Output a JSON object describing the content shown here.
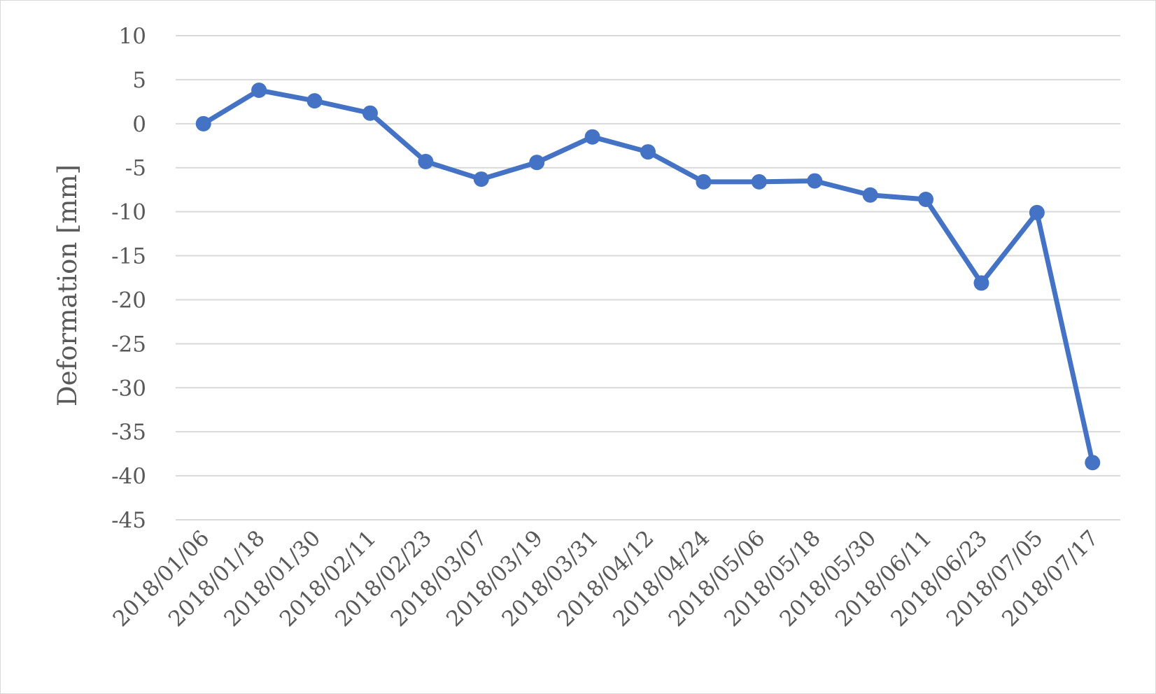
{
  "chart_data": {
    "type": "line",
    "title": "",
    "xlabel": "",
    "ylabel": "Deformation [mm]",
    "ylim": [
      -45,
      10
    ],
    "ytick_step": 5,
    "grid": true,
    "legend": "none",
    "series_color": "#4472C4",
    "categories": [
      "2018/01/06",
      "2018/01/18",
      "2018/01/30",
      "2018/02/11",
      "2018/02/23",
      "2018/03/07",
      "2018/03/19",
      "2018/03/31",
      "2018/04/12",
      "2018/04/24",
      "2018/05/06",
      "2018/05/18",
      "2018/05/30",
      "2018/06/11",
      "2018/06/23",
      "2018/07/05",
      "2018/07/17"
    ],
    "series": [
      {
        "values": [
          0,
          3.8,
          2.6,
          1.2,
          -4.3,
          -6.3,
          -4.4,
          -1.5,
          -3.2,
          -6.6,
          -6.6,
          -6.5,
          -8.1,
          -8.6,
          -18.1,
          -10.1,
          -38.5
        ]
      }
    ]
  }
}
